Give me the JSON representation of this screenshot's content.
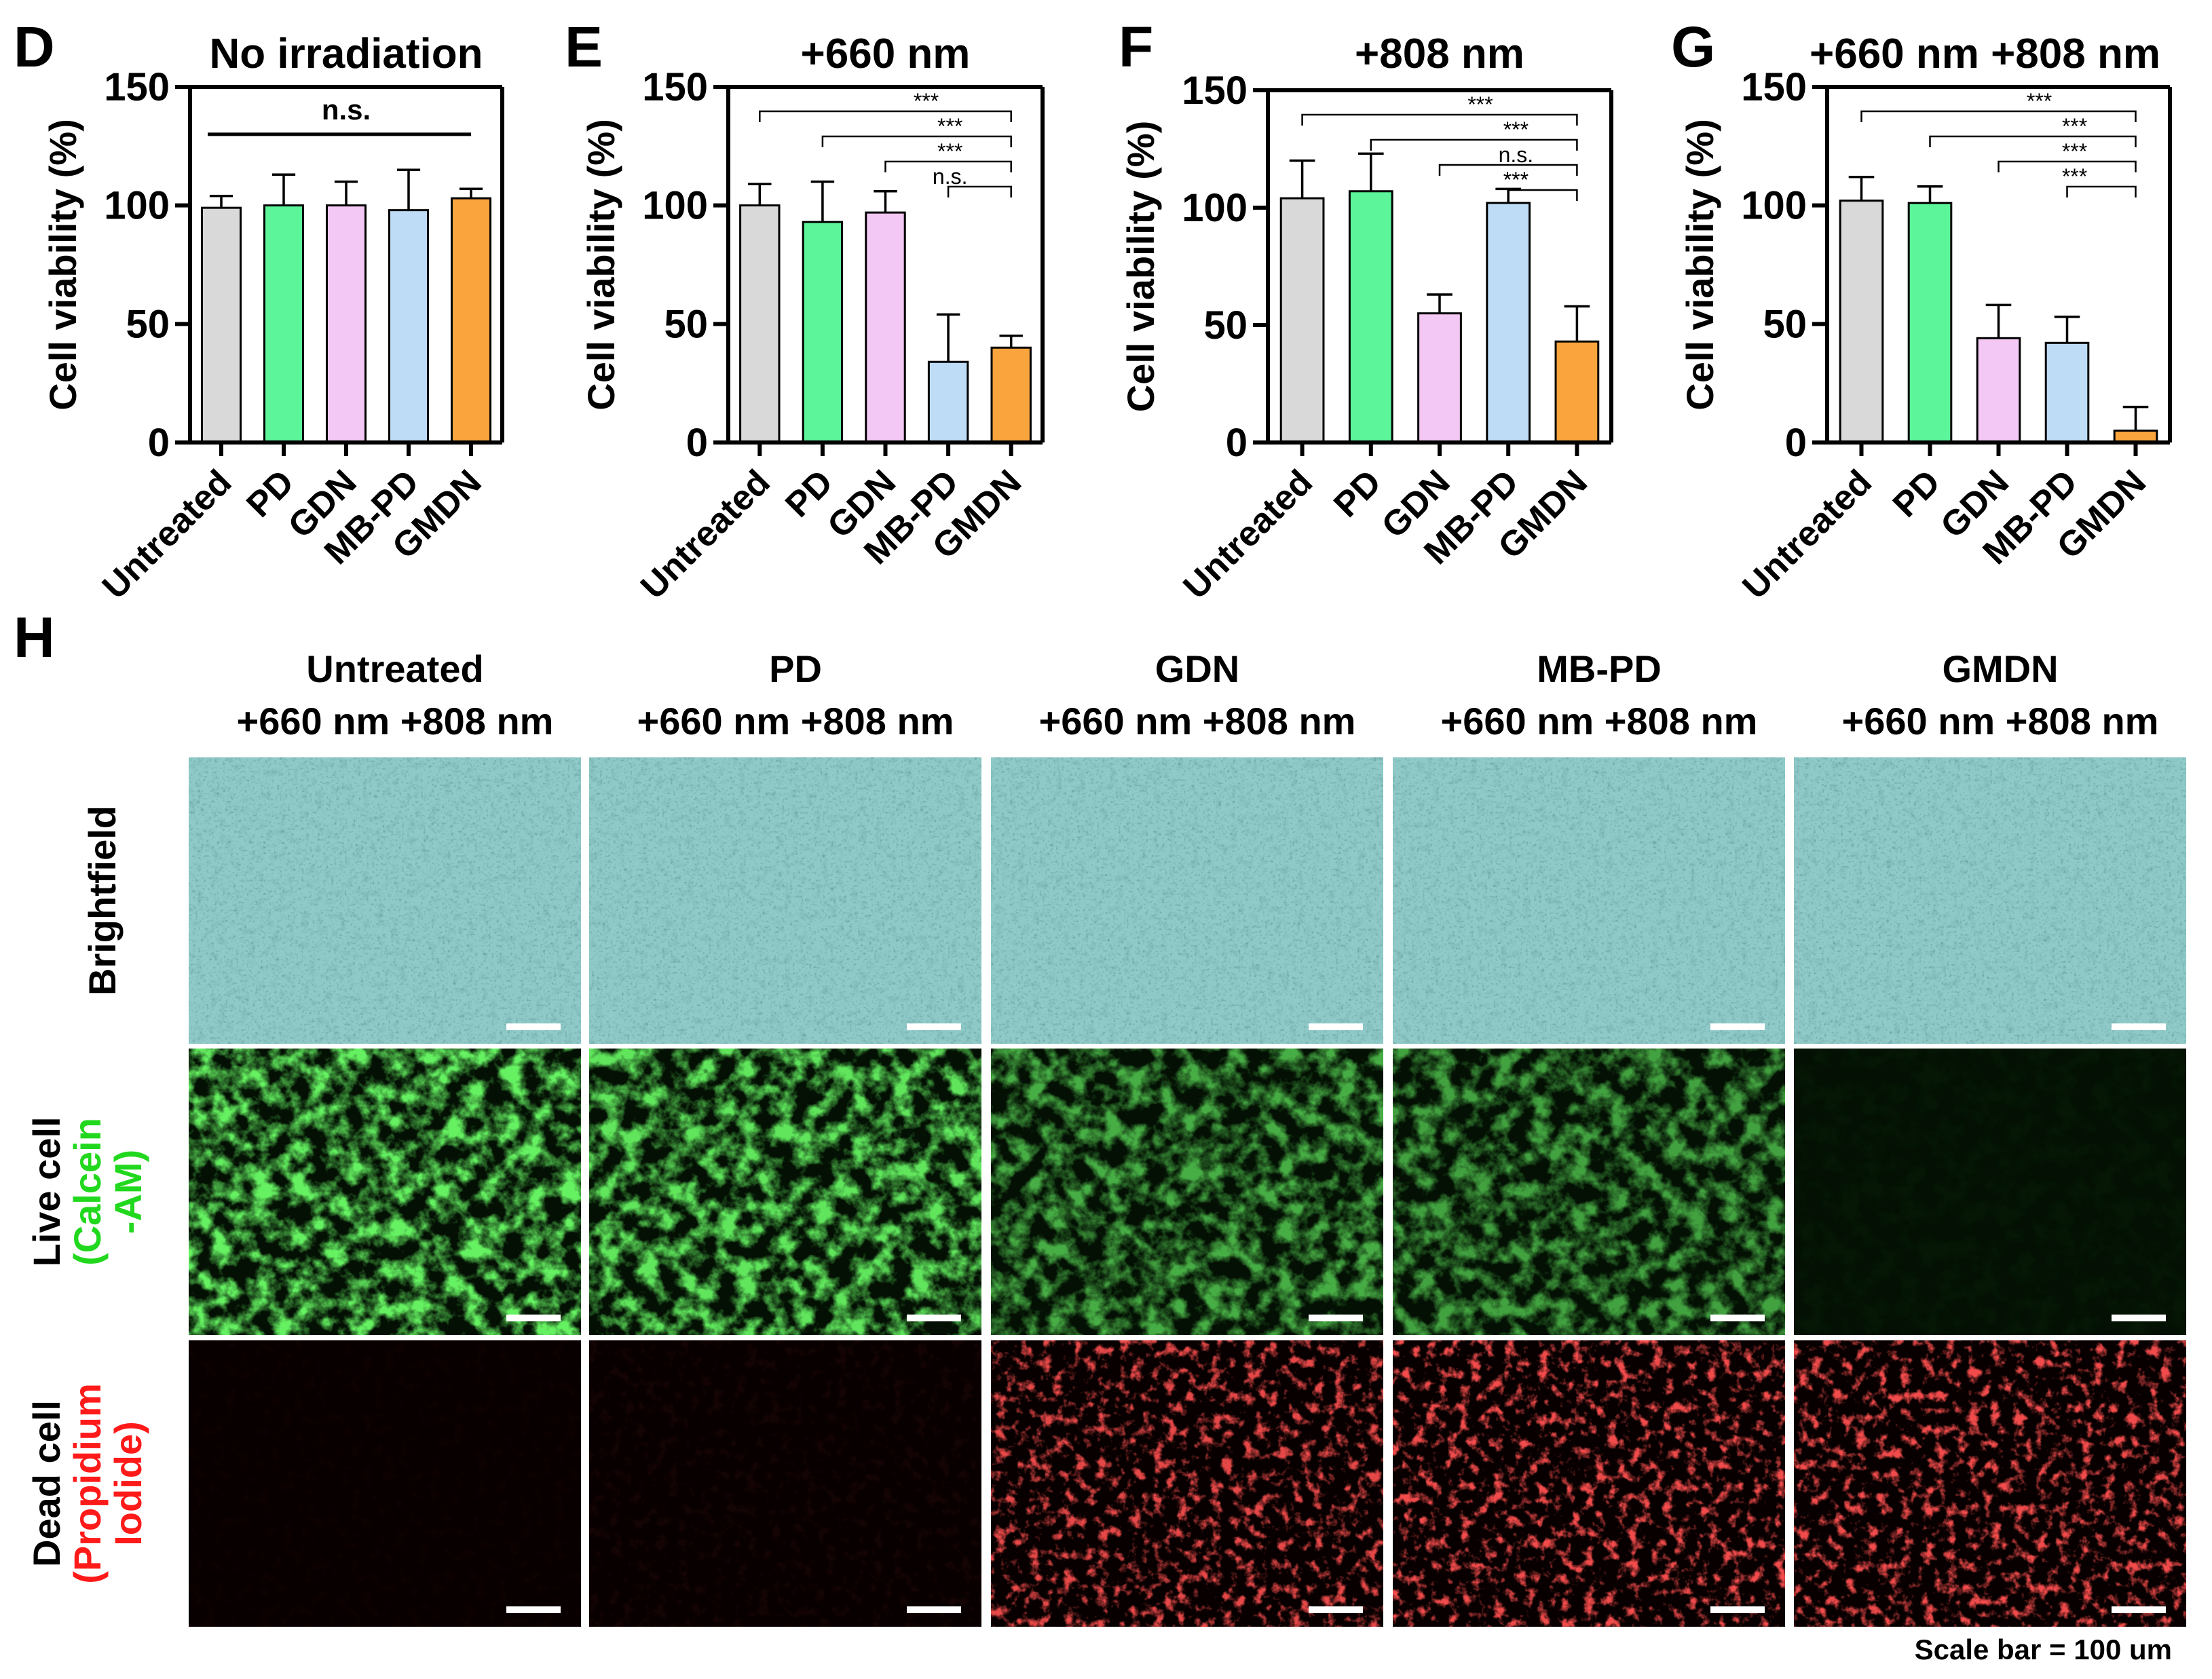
{
  "colors": {
    "Untreated": "#d9d9d9",
    "PD": "#5cf59a",
    "GDN": "#f4c8f4",
    "MB-PD": "#bfdcf6",
    "GMDN": "#f9a43d",
    "live_stain": "#22d81e",
    "dead_stain": "#ff1a1a"
  },
  "chart_data": [
    {
      "panel": "D",
      "type": "bar",
      "title": "No irradiation",
      "ylabel": "Cell viability (%)",
      "ylim": [
        0,
        150
      ],
      "yticks": [
        "0",
        "50",
        "100",
        "150"
      ],
      "categories": [
        "Untreated",
        "PD",
        "GDN",
        "MB-PD",
        "GMDN"
      ],
      "values": [
        99,
        100,
        100,
        98,
        103
      ],
      "errors": [
        5,
        13,
        10,
        17,
        4
      ],
      "significance": [
        {
          "from": 0,
          "to": 4,
          "label": "n.s.",
          "style": "line"
        }
      ]
    },
    {
      "panel": "E",
      "type": "bar",
      "title": "+660 nm",
      "ylabel": "Cell viability (%)",
      "ylim": [
        0,
        150
      ],
      "yticks": [
        "0",
        "50",
        "100",
        "150"
      ],
      "categories": [
        "Untreated",
        "PD",
        "GDN",
        "MB-PD",
        "GMDN"
      ],
      "values": [
        100,
        93,
        97,
        34,
        40
      ],
      "errors": [
        9,
        17,
        9,
        20,
        5
      ],
      "significance": [
        {
          "from": 0,
          "to": 4,
          "label": "***"
        },
        {
          "from": 1,
          "to": 4,
          "label": "***"
        },
        {
          "from": 2,
          "to": 4,
          "label": "***"
        },
        {
          "from": 3,
          "to": 4,
          "label": "n.s."
        }
      ]
    },
    {
      "panel": "F",
      "type": "bar",
      "title": "+808 nm",
      "ylabel": "Cell viability (%)",
      "ylim": [
        0,
        150
      ],
      "yticks": [
        "0",
        "50",
        "100",
        "150"
      ],
      "categories": [
        "Untreated",
        "PD",
        "GDN",
        "MB-PD",
        "GMDN"
      ],
      "values": [
        104,
        107,
        55,
        102,
        43
      ],
      "errors": [
        16,
        16,
        8,
        6,
        15
      ],
      "significance": [
        {
          "from": 0,
          "to": 4,
          "label": "***"
        },
        {
          "from": 1,
          "to": 4,
          "label": "***"
        },
        {
          "from": 2,
          "to": 4,
          "label": "n.s."
        },
        {
          "from": 3,
          "to": 4,
          "label": "***"
        }
      ]
    },
    {
      "panel": "G",
      "type": "bar",
      "title": "+660 nm +808 nm",
      "ylabel": "Cell viability (%)",
      "ylim": [
        0,
        150
      ],
      "yticks": [
        "0",
        "50",
        "100",
        "150"
      ],
      "categories": [
        "Untreated",
        "PD",
        "GDN",
        "MB-PD",
        "GMDN"
      ],
      "values": [
        102,
        101,
        44,
        42,
        5
      ],
      "errors": [
        10,
        7,
        14,
        11,
        10
      ],
      "significance": [
        {
          "from": 0,
          "to": 4,
          "label": "***"
        },
        {
          "from": 1,
          "to": 4,
          "label": "***"
        },
        {
          "from": 2,
          "to": 4,
          "label": "***"
        },
        {
          "from": 3,
          "to": 4,
          "label": "***"
        }
      ]
    }
  ],
  "microscopy": {
    "panel": "H",
    "columns": [
      {
        "line1": "Untreated",
        "line2": "+660 nm  +808 nm"
      },
      {
        "line1": "PD",
        "line2": "+660 nm  +808 nm"
      },
      {
        "line1": "GDN",
        "line2": "+660 nm  +808 nm"
      },
      {
        "line1": "MB-PD",
        "line2": "+660 nm  +808 nm"
      },
      {
        "line1": "GMDN",
        "line2": "+660 nm  +808 nm"
      }
    ],
    "rows": [
      {
        "key": "brightfield",
        "label1": "Brightfield",
        "label2": ""
      },
      {
        "key": "live",
        "label1": "Live cell",
        "label2": "(Calcein",
        "label3": "-AM)"
      },
      {
        "key": "dead",
        "label1": "Dead cell",
        "label2": "(Propidium",
        "label3": "Iodide)"
      }
    ],
    "live_intensity": [
      1.0,
      0.95,
      0.7,
      0.65,
      0.03
    ],
    "dead_intensity": [
      0.02,
      0.05,
      0.9,
      0.95,
      0.95
    ],
    "scale_bar_text": "Scale bar = 100 um"
  }
}
